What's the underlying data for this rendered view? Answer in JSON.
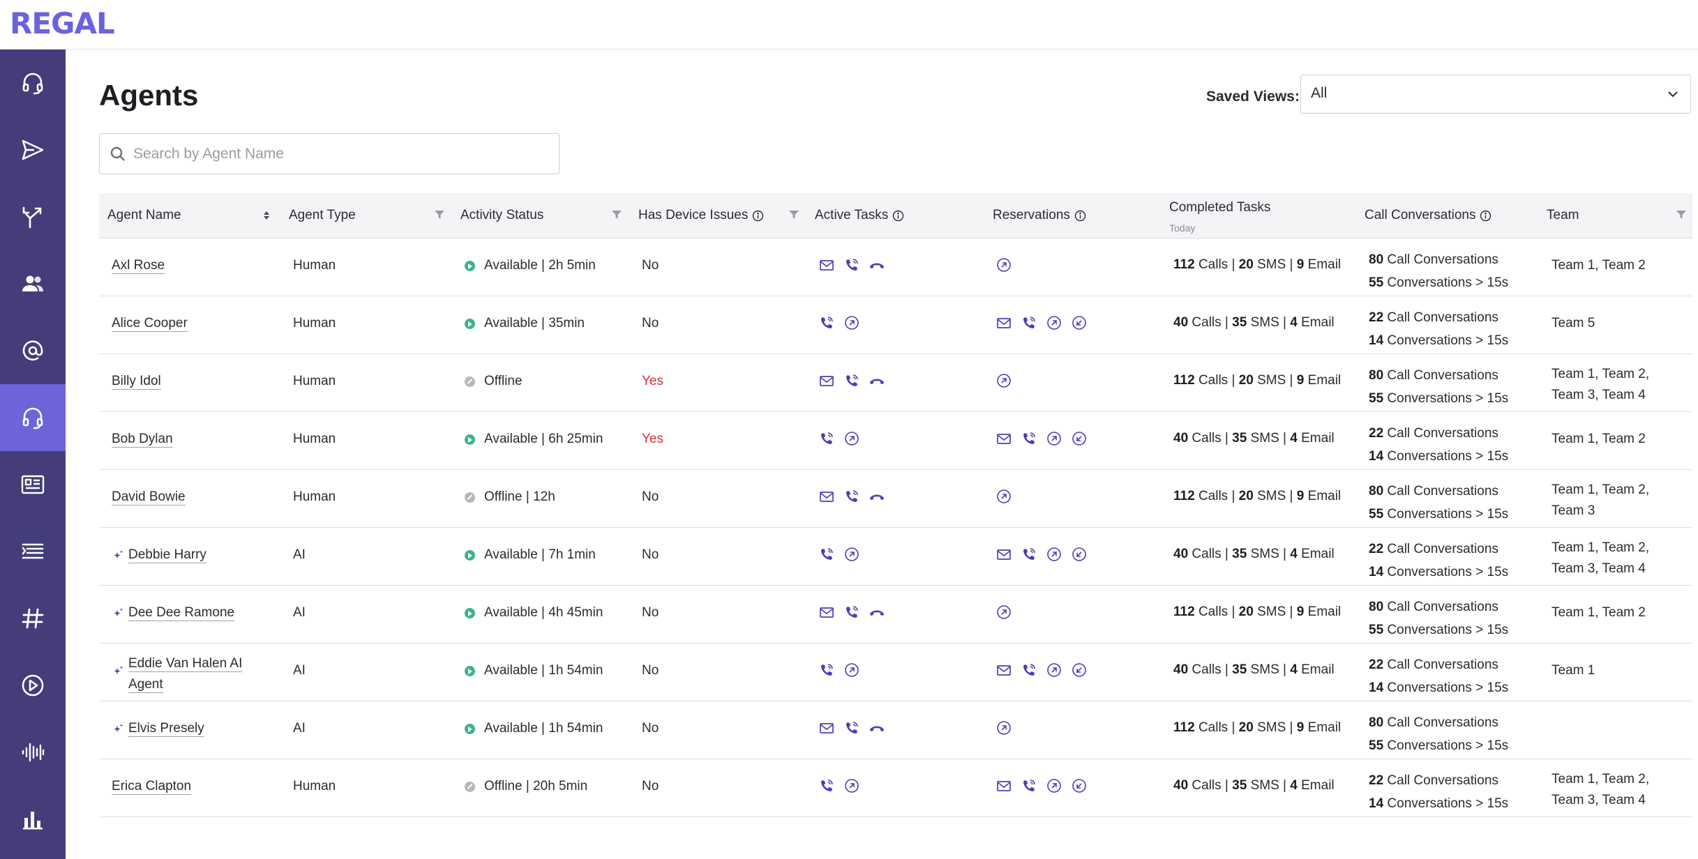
{
  "app": {
    "logo": "REGAL"
  },
  "sidebar": {
    "items": [
      {
        "icon": "headset-icon",
        "active": false
      },
      {
        "icon": "send-icon",
        "active": false
      },
      {
        "icon": "routing-icon",
        "active": false
      },
      {
        "icon": "contacts-icon",
        "active": false
      },
      {
        "icon": "at-sign-icon",
        "active": false
      },
      {
        "icon": "agents-headset-icon",
        "active": true
      },
      {
        "icon": "contact-card-icon",
        "active": false
      },
      {
        "icon": "list-icon",
        "active": false
      },
      {
        "icon": "hashtag-icon",
        "active": false
      },
      {
        "icon": "play-circle-icon",
        "active": false
      },
      {
        "icon": "audio-wave-icon",
        "active": false
      },
      {
        "icon": "bar-chart-icon",
        "active": false
      }
    ]
  },
  "page": {
    "title": "Agents"
  },
  "saved_views": {
    "label": "Saved Views:",
    "value": "All"
  },
  "search": {
    "placeholder": "Search by Agent Name",
    "value": ""
  },
  "table": {
    "columns": {
      "agent_name": "Agent Name",
      "agent_type": "Agent Type",
      "activity_status": "Activity Status",
      "device_issues": "Has Device Issues",
      "active_tasks": "Active Tasks",
      "reservations": "Reservations",
      "completed_tasks": "Completed Tasks",
      "completed_tasks_sub": "Today",
      "call_conversations": "Call Conversations",
      "team": "Team"
    },
    "labels": {
      "calls": "Calls",
      "sms": "SMS",
      "email": "Email",
      "call_conversations": "Call Conversations",
      "conversations_gt": "Conversations > 15s"
    },
    "rows": [
      {
        "name": "Axl Rose",
        "ai": false,
        "type": "Human",
        "status": "Available | 2h 5min",
        "status_kind": "available",
        "device": "No",
        "active_tasks": [
          "email",
          "phone",
          "hangup"
        ],
        "reservations": [
          "outbound"
        ],
        "calls": "112",
        "sms": "20",
        "email": "9",
        "call_conv": "80",
        "conv_15s": "55",
        "team": "Team 1, Team 2"
      },
      {
        "name": "Alice Cooper",
        "ai": false,
        "type": "Human",
        "status": "Available | 35min",
        "status_kind": "available",
        "device": "No",
        "active_tasks": [
          "phone",
          "outbound"
        ],
        "reservations": [
          "email",
          "phone",
          "outbound",
          "inbound"
        ],
        "calls": "40",
        "sms": "35",
        "email": "4",
        "call_conv": "22",
        "conv_15s": "14",
        "team": "Team 5"
      },
      {
        "name": "Billy Idol",
        "ai": false,
        "type": "Human",
        "status": "Offline",
        "status_kind": "offline",
        "device": "Yes",
        "active_tasks": [
          "email",
          "phone",
          "hangup"
        ],
        "reservations": [
          "outbound"
        ],
        "calls": "112",
        "sms": "20",
        "email": "9",
        "call_conv": "80",
        "conv_15s": "55",
        "team": "Team 1, Team 2, Team 3, Team 4"
      },
      {
        "name": "Bob Dylan",
        "ai": false,
        "type": "Human",
        "status": "Available | 6h 25min",
        "status_kind": "available",
        "device": "Yes",
        "active_tasks": [
          "phone",
          "outbound"
        ],
        "reservations": [
          "email",
          "phone",
          "outbound",
          "inbound"
        ],
        "calls": "40",
        "sms": "35",
        "email": "4",
        "call_conv": "22",
        "conv_15s": "14",
        "team": "Team 1, Team 2"
      },
      {
        "name": "David Bowie",
        "ai": false,
        "type": "Human",
        "status": "Offline | 12h",
        "status_kind": "offline",
        "device": "No",
        "active_tasks": [
          "email",
          "phone",
          "hangup"
        ],
        "reservations": [
          "outbound"
        ],
        "calls": "112",
        "sms": "20",
        "email": "9",
        "call_conv": "80",
        "conv_15s": "55",
        "team": "Team 1, Team 2, Team 3"
      },
      {
        "name": "Debbie Harry",
        "ai": true,
        "type": "AI",
        "status": "Available | 7h 1min",
        "status_kind": "available",
        "device": "No",
        "active_tasks": [
          "phone",
          "outbound"
        ],
        "reservations": [
          "email",
          "phone",
          "outbound",
          "inbound"
        ],
        "calls": "40",
        "sms": "35",
        "email": "4",
        "call_conv": "22",
        "conv_15s": "14",
        "team": "Team 1, Team 2, Team 3, Team 4"
      },
      {
        "name": "Dee Dee Ramone",
        "ai": true,
        "type": "AI",
        "status": "Available | 4h 45min",
        "status_kind": "available",
        "device": "No",
        "active_tasks": [
          "email",
          "phone",
          "hangup"
        ],
        "reservations": [
          "outbound"
        ],
        "calls": "112",
        "sms": "20",
        "email": "9",
        "call_conv": "80",
        "conv_15s": "55",
        "team": "Team 1, Team 2"
      },
      {
        "name": "Eddie Van Halen AI Agent",
        "ai": true,
        "type": "AI",
        "status": "Available | 1h 54min",
        "status_kind": "available",
        "device": "No",
        "active_tasks": [
          "phone",
          "outbound"
        ],
        "reservations": [
          "email",
          "phone",
          "outbound",
          "inbound"
        ],
        "calls": "40",
        "sms": "35",
        "email": "4",
        "call_conv": "22",
        "conv_15s": "14",
        "team": "Team 1"
      },
      {
        "name": "Elvis Presely",
        "ai": true,
        "type": "AI",
        "status": "Available | 1h 54min",
        "status_kind": "available",
        "device": "No",
        "active_tasks": [
          "email",
          "phone",
          "hangup"
        ],
        "reservations": [
          "outbound"
        ],
        "calls": "112",
        "sms": "20",
        "email": "9",
        "call_conv": "80",
        "conv_15s": "55",
        "team": ""
      },
      {
        "name": "Erica Clapton",
        "ai": false,
        "type": "Human",
        "status": "Offline | 20h 5min",
        "status_kind": "offline",
        "device": "No",
        "active_tasks": [
          "phone",
          "outbound"
        ],
        "reservations": [
          "email",
          "phone",
          "outbound",
          "inbound"
        ],
        "calls": "40",
        "sms": "35",
        "email": "4",
        "call_conv": "22",
        "conv_15s": "14",
        "team": "Team 1, Team 2, Team 3, Team 4"
      }
    ]
  }
}
